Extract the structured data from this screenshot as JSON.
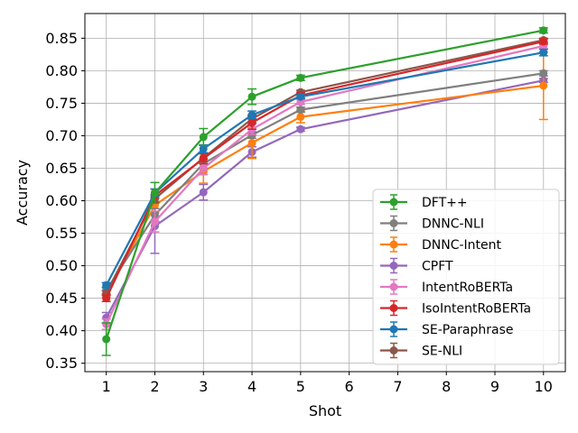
{
  "chart_data": {
    "type": "line",
    "title": "",
    "xlabel": "Shot",
    "ylabel": "Accuracy",
    "x": [
      1,
      2,
      3,
      4,
      5,
      10
    ],
    "xticks": [
      "1",
      "2",
      "3",
      "4",
      "5",
      "6",
      "7",
      "8",
      "9",
      "10"
    ],
    "xlim": [
      0.56,
      10.45
    ],
    "ylim": [
      0.337,
      0.888
    ],
    "yticks": [
      "0.35",
      "0.40",
      "0.45",
      "0.50",
      "0.55",
      "0.60",
      "0.65",
      "0.70",
      "0.75",
      "0.80",
      "0.85"
    ],
    "grid": true,
    "legend_position": "lower-right",
    "series": [
      {
        "name": "DFT++",
        "color": "#2ca02c",
        "values": [
          0.387,
          0.612,
          0.698,
          0.76,
          0.789,
          0.862
        ],
        "errors": [
          0.025,
          0.016,
          0.013,
          0.012,
          0.004,
          0.004
        ]
      },
      {
        "name": "DNNC-NLI",
        "color": "#7f7f7f",
        "values": [
          0.462,
          0.578,
          0.657,
          0.701,
          0.74,
          0.796
        ],
        "errors": [
          0.005,
          0.01,
          0.007,
          0.005,
          0.004,
          0.004
        ]
      },
      {
        "name": "DNNC-Intent",
        "color": "#ff7f0e",
        "values": [
          0.456,
          0.593,
          0.645,
          0.689,
          0.729,
          0.777
        ],
        "errors": [
          0.005,
          0.012,
          0.018,
          0.024,
          0.009,
          0.052
        ]
      },
      {
        "name": "CPFT",
        "color": "#9467bd",
        "values": [
          0.42,
          0.561,
          0.613,
          0.675,
          0.71,
          0.785
        ],
        "errors": [
          0.008,
          0.042,
          0.012,
          0.008,
          0.003,
          0.003
        ]
      },
      {
        "name": "IntentRoBERTa",
        "color": "#e377c2",
        "values": [
          0.41,
          0.568,
          0.65,
          0.71,
          0.752,
          0.838
        ],
        "errors": [
          0.008,
          0.016,
          0.01,
          0.008,
          0.004,
          0.004
        ]
      },
      {
        "name": "IsoIntentRoBERTa",
        "color": "#d62728",
        "values": [
          0.45,
          0.608,
          0.665,
          0.72,
          0.762,
          0.845
        ],
        "errors": [
          0.005,
          0.01,
          0.008,
          0.01,
          0.004,
          0.004
        ]
      },
      {
        "name": "SE-Paraphrase",
        "color": "#1f77b4",
        "values": [
          0.47,
          0.612,
          0.68,
          0.732,
          0.76,
          0.828
        ],
        "errors": [
          0.004,
          0.006,
          0.006,
          0.006,
          0.003,
          0.005
        ]
      },
      {
        "name": "SE-NLI",
        "color": "#8c564b",
        "values": [
          0.458,
          0.603,
          0.666,
          0.726,
          0.767,
          0.847
        ],
        "errors": [
          0.004,
          0.006,
          0.006,
          0.006,
          0.003,
          0.003
        ]
      }
    ],
    "draw_order": [
      "CPFT",
      "DNNC-Intent",
      "DNNC-NLI",
      "IntentRoBERTa",
      "SE-NLI",
      "IsoIntentRoBERTa",
      "SE-Paraphrase",
      "DFT++"
    ]
  }
}
